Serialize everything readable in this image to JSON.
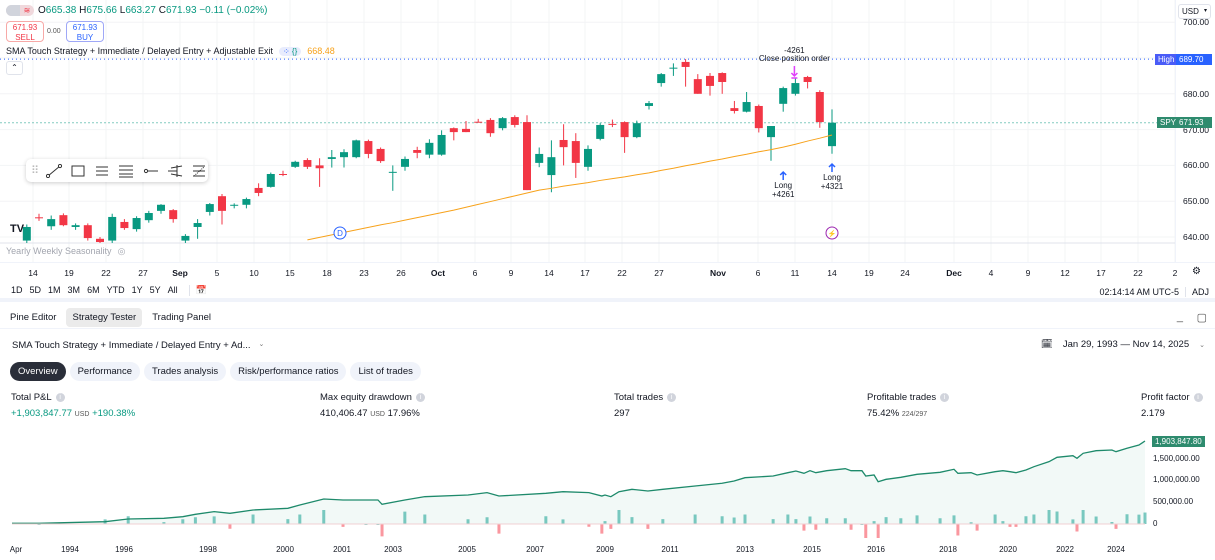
{
  "legend": {
    "open_label": "O",
    "open": "665.38",
    "high_label": "H",
    "high": "675.66",
    "low_label": "L",
    "low": "663.27",
    "close_label": "C",
    "close": "671.93",
    "change": "−0.11 (−0.02%)"
  },
  "trade": {
    "sell_price": "671.93",
    "sell_label": "SELL",
    "spread": "0.00",
    "buy_price": "671.93",
    "buy_label": "BUY"
  },
  "strategy": {
    "name": "SMA Touch Strategy + Immediate / Delayed Entry + Adjustable Exit",
    "sma_value": "668.48",
    "sma_color": "#f7a21b"
  },
  "seasonality": "Yearly Weekly Seasonality",
  "price_axis": {
    "currency": "USD",
    "ticks": [
      "700.00",
      "680.00",
      "670.00",
      "660.00",
      "650.00",
      "640.00"
    ],
    "tick_values": [
      700,
      680,
      670,
      660,
      650,
      640
    ],
    "high_label": "High",
    "high_value": "689.70",
    "symbol": "SPY",
    "last_value": "671.93"
  },
  "colors": {
    "up": "#089981",
    "down": "#f23645",
    "high_line": "#2962ff",
    "sma": "#f7a21b",
    "marker_buy": "#2962ff",
    "marker_close": "#e040fb"
  },
  "chart_data": {
    "type": "candlestick",
    "ylim": [
      636,
      703
    ],
    "candles": [
      [
        639,
        643.5,
        638,
        642.8
      ],
      [
        645.5,
        646.5,
        644.5,
        645.3
      ],
      [
        643,
        646,
        642,
        645
      ],
      [
        646.1,
        646.6,
        643,
        643.3
      ],
      [
        642.8,
        643.8,
        642,
        643.3
      ],
      [
        643.3,
        643.8,
        639,
        639.7
      ],
      [
        639.5,
        640,
        638,
        638.6
      ],
      [
        639,
        646.5,
        637,
        645.6
      ],
      [
        644.2,
        645,
        642,
        642.5
      ],
      [
        642.2,
        645.8,
        641.5,
        645.3
      ],
      [
        644.7,
        647.3,
        644,
        646.7
      ],
      [
        647.3,
        649.2,
        646.5,
        649
      ],
      [
        647.5,
        647.8,
        644,
        645
      ],
      [
        639,
        640.8,
        638,
        640.3
      ],
      [
        642.8,
        645,
        639.5,
        643.9
      ],
      [
        647,
        649.5,
        646,
        649.2
      ],
      [
        651.4,
        652,
        643.5,
        647.3
      ],
      [
        648.8,
        649.4,
        648,
        649
      ],
      [
        649,
        651,
        648,
        650.6
      ],
      [
        653.7,
        655,
        651.4,
        652.3
      ],
      [
        654,
        658,
        653.8,
        657.6
      ],
      [
        657.6,
        658.5,
        657,
        657.4
      ],
      [
        659.6,
        661.3,
        659.3,
        661
      ],
      [
        661.5,
        662,
        659,
        659.6
      ],
      [
        660,
        662,
        654,
        659.2
      ],
      [
        661.8,
        664.3,
        659.4,
        662.3
      ],
      [
        662.3,
        664.5,
        659.4,
        663.7
      ],
      [
        662.3,
        667.2,
        662,
        667
      ],
      [
        666.8,
        667.2,
        662,
        663.2
      ],
      [
        664.6,
        665,
        660.7,
        661.2
      ],
      [
        658.1,
        660,
        652.9,
        658.2
      ],
      [
        659.6,
        662.5,
        658.5,
        661.8
      ],
      [
        664.3,
        665.2,
        662,
        663.5
      ],
      [
        663,
        667.3,
        662,
        666.3
      ],
      [
        663,
        669.8,
        662.7,
        668.5
      ],
      [
        670.4,
        670.6,
        667,
        669.3
      ],
      [
        670.2,
        672.4,
        669.3,
        669.3
      ],
      [
        672.2,
        673,
        672,
        672
      ],
      [
        672.7,
        673.2,
        668,
        669
      ],
      [
        670.4,
        673.5,
        669.8,
        673.2
      ],
      [
        673.5,
        674,
        670.6,
        671.3
      ],
      [
        672.1,
        674,
        653.1,
        653.1
      ],
      [
        660.7,
        665,
        659.5,
        663.2
      ],
      [
        657.3,
        667,
        652.5,
        662.3
      ],
      [
        667.1,
        671.5,
        660,
        665.1
      ],
      [
        666.8,
        669,
        656.5,
        660.7
      ],
      [
        659.6,
        665.6,
        658.5,
        664.6
      ],
      [
        667.4,
        671.8,
        667,
        671.3
      ],
      [
        671.6,
        672.8,
        670.7,
        671.4
      ],
      [
        672.1,
        672.3,
        663.5,
        667.9
      ],
      [
        667.9,
        672.5,
        667.6,
        671.8
      ],
      [
        676.6,
        678,
        675.6,
        677.4
      ],
      [
        683,
        685.8,
        682,
        685.5
      ],
      [
        687.2,
        688.5,
        685,
        687.3
      ],
      [
        688.9,
        689.7,
        682,
        687.5
      ],
      [
        684.1,
        685.5,
        680,
        680
      ],
      [
        685,
        685.8,
        679.5,
        682.2
      ],
      [
        685.8,
        686,
        680,
        683.3
      ],
      [
        676,
        678,
        674.5,
        675.2
      ],
      [
        675,
        680.5,
        674.8,
        677.7
      ],
      [
        676.6,
        677,
        669.2,
        670.4
      ],
      [
        667.9,
        671,
        661.3,
        671
      ],
      [
        677.2,
        682,
        675,
        681.6
      ],
      [
        680,
        684.5,
        679.5,
        683
      ],
      [
        684.7,
        685,
        681.5,
        683.3
      ],
      [
        680.5,
        681,
        670.5,
        672.1
      ],
      [
        665.38,
        675.66,
        663.27,
        671.93
      ]
    ],
    "sma": [
      null,
      null,
      null,
      null,
      null,
      null,
      null,
      null,
      null,
      null,
      null,
      null,
      null,
      null,
      null,
      null,
      null,
      null,
      null,
      null,
      null,
      null,
      null,
      639.2,
      639.9,
      640.6,
      641.3,
      642.0,
      642.7,
      643.4,
      644.0,
      644.7,
      645.4,
      646.1,
      646.8,
      647.5,
      648.3,
      649.1,
      649.9,
      650.7,
      651.5,
      652.3,
      653.1,
      653.6,
      654.2,
      654.7,
      655.2,
      655.8,
      656.3,
      656.8,
      657.4,
      657.9,
      658.6,
      659.2,
      659.9,
      660.5,
      661.2,
      661.8,
      662.5,
      663.1,
      663.8,
      664.4,
      665.1,
      665.9,
      666.8,
      667.6,
      668.5
    ],
    "x_tick_labels": [
      "14",
      "19",
      "22",
      "27",
      "Sep",
      "5",
      "10",
      "15",
      "18",
      "23",
      "26",
      "Oct",
      "6",
      "9",
      "14",
      "17",
      "22",
      "27",
      "Nov",
      "6",
      "11",
      "14",
      "19",
      "24",
      "Dec",
      "4",
      "9",
      "12",
      "17",
      "22",
      "2"
    ],
    "x_tick_bold": [
      "Sep",
      "Oct",
      "Nov",
      "Dec"
    ]
  },
  "markers": {
    "long1": {
      "label": "Long",
      "qty": "+4261"
    },
    "long2": {
      "label": "Long",
      "qty": "+4321"
    },
    "close": {
      "qty": "-4261",
      "label": "Close position order"
    },
    "dividend": "D"
  },
  "range_bar": {
    "ranges": [
      "1D",
      "5D",
      "1M",
      "3M",
      "6M",
      "YTD",
      "1Y",
      "5Y",
      "All"
    ],
    "time": "02:14:14 AM UTC-5",
    "adj": "ADJ"
  },
  "panel": {
    "tabs": [
      "Pine Editor",
      "Strategy Tester",
      "Trading Panel"
    ],
    "active_tab": "Strategy Tester"
  },
  "tester": {
    "strategy_short": "SMA Touch Strategy + Immediate / Delayed Entry + Ad...",
    "date_range": "Jan 29, 1993 — Nov 14, 2025",
    "tabs": [
      "Overview",
      "Performance",
      "Trades analysis",
      "Risk/performance ratios",
      "List of trades"
    ],
    "active_tab": "Overview",
    "metrics": [
      {
        "label": "Total P&L",
        "value": "+1,903,847.77",
        "unit": "USD",
        "extra": "+190.38%"
      },
      {
        "label": "Max equity drawdown",
        "value": "410,406.47",
        "unit": "USD",
        "extra": "17.96%"
      },
      {
        "label": "Total trades",
        "value": "297",
        "unit": "",
        "extra": ""
      },
      {
        "label": "Profitable trades",
        "value": "75.42%",
        "unit": "",
        "extra": "224/297"
      },
      {
        "label": "Profit factor",
        "value": "2.179",
        "unit": "",
        "extra": ""
      }
    ]
  },
  "equity_chart": {
    "type": "area",
    "last_value": "1,903,847.80",
    "y_ticks": [
      "1,500,000.00",
      "1,000,000.00",
      "500,000.00",
      "0"
    ],
    "y_tick_values": [
      1500000,
      1000000,
      500000,
      0
    ],
    "x_labels": [
      "Apr",
      "1994",
      "1996",
      "1998",
      "2000",
      "2001",
      "2003",
      "2005",
      "2007",
      "2009",
      "2011",
      "2013",
      "2015",
      "2016",
      "2018",
      "2020",
      "2022",
      "2024"
    ],
    "points": [
      [
        1993.2,
        16000
      ],
      [
        1993.57,
        16000
      ],
      [
        1995.3,
        53000
      ],
      [
        1996.1,
        115000
      ],
      [
        1996.95,
        130000
      ],
      [
        1997.4,
        168000
      ],
      [
        1997.7,
        222000
      ],
      [
        1998.16,
        283000
      ],
      [
        1998.57,
        245000
      ],
      [
        1999.17,
        321000
      ],
      [
        2000.05,
        360000
      ],
      [
        2000.26,
        436000
      ],
      [
        2000.68,
        574000
      ],
      [
        2001.04,
        551000
      ],
      [
        2001.94,
        551000
      ],
      [
        2002.41,
        551000
      ],
      [
        2002.57,
        452000
      ],
      [
        2003.32,
        551000
      ],
      [
        2003.86,
        627000
      ],
      [
        2005.03,
        665000
      ],
      [
        2005.59,
        719000
      ],
      [
        2005.94,
        642000
      ],
      [
        2007.31,
        704000
      ],
      [
        2007.8,
        741000
      ],
      [
        2008.54,
        719000
      ],
      [
        2008.91,
        642000
      ],
      [
        2009.0,
        665000
      ],
      [
        2009.18,
        626000
      ],
      [
        2009.43,
        741000
      ],
      [
        2009.83,
        796000
      ],
      [
        2010.32,
        757000
      ],
      [
        2010.78,
        796000
      ],
      [
        2011.67,
        872000
      ],
      [
        2012.39,
        934000
      ],
      [
        2012.71,
        986000
      ],
      [
        2013.0,
        1062000
      ],
      [
        2013.84,
        1101000
      ],
      [
        2014.28,
        1177000
      ],
      [
        2014.52,
        1216000
      ],
      [
        2014.76,
        1163000
      ],
      [
        2014.94,
        1223000
      ],
      [
        2015.06,
        1177000
      ],
      [
        2015.23,
        1223000
      ],
      [
        2015.52,
        1269000
      ],
      [
        2015.61,
        1223000
      ],
      [
        2015.78,
        1223000
      ],
      [
        2015.84,
        1101000
      ],
      [
        2015.97,
        1124000
      ],
      [
        2016.06,
        970000
      ],
      [
        2016.28,
        1025000
      ],
      [
        2016.69,
        1071000
      ],
      [
        2017.14,
        1140000
      ],
      [
        2017.78,
        1186000
      ],
      [
        2018.2,
        1255000
      ],
      [
        2018.33,
        1163000
      ],
      [
        2018.77,
        1177000
      ],
      [
        2018.97,
        1124000
      ],
      [
        2019.57,
        1200000
      ],
      [
        2019.83,
        1223000
      ],
      [
        2020.07,
        1200000
      ],
      [
        2020.28,
        1177000
      ],
      [
        2020.63,
        1239000
      ],
      [
        2020.91,
        1315000
      ],
      [
        2021.44,
        1430000
      ],
      [
        2021.72,
        1530000
      ],
      [
        2022.31,
        1567000
      ],
      [
        2022.47,
        1507000
      ],
      [
        2022.71,
        1622000
      ],
      [
        2023.22,
        1682000
      ],
      [
        2023.84,
        1698000
      ],
      [
        2024.0,
        1659000
      ],
      [
        2024.71,
        1737000
      ],
      [
        2025.48,
        1812000
      ],
      [
        2025.87,
        1903848
      ]
    ]
  }
}
